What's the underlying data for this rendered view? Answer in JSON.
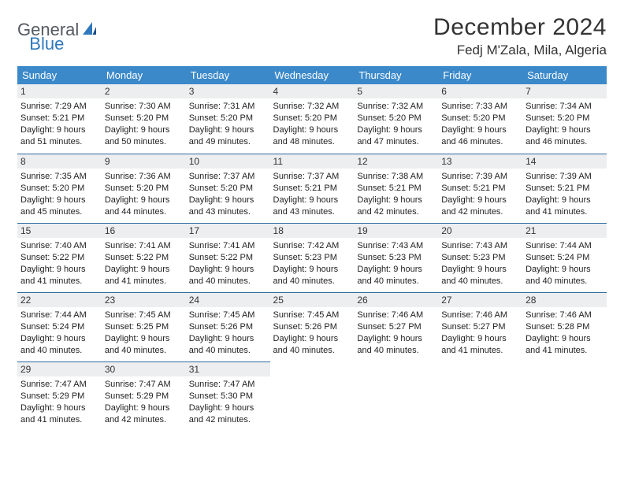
{
  "logo": {
    "part1": "General",
    "part2": "Blue"
  },
  "title": "December 2024",
  "location": "Fedj M'Zala, Mila, Algeria",
  "colors": {
    "header_bg": "#3b89c9",
    "header_text": "#ffffff",
    "daynum_bg": "#eceeef",
    "divider": "#2f6aa3",
    "logo_gray": "#555a62",
    "logo_blue": "#2f78bd"
  },
  "weekdays": [
    "Sunday",
    "Monday",
    "Tuesday",
    "Wednesday",
    "Thursday",
    "Friday",
    "Saturday"
  ],
  "weeks": [
    [
      {
        "n": "1",
        "sr": "Sunrise: 7:29 AM",
        "ss": "Sunset: 5:21 PM",
        "d1": "Daylight: 9 hours",
        "d2": "and 51 minutes."
      },
      {
        "n": "2",
        "sr": "Sunrise: 7:30 AM",
        "ss": "Sunset: 5:20 PM",
        "d1": "Daylight: 9 hours",
        "d2": "and 50 minutes."
      },
      {
        "n": "3",
        "sr": "Sunrise: 7:31 AM",
        "ss": "Sunset: 5:20 PM",
        "d1": "Daylight: 9 hours",
        "d2": "and 49 minutes."
      },
      {
        "n": "4",
        "sr": "Sunrise: 7:32 AM",
        "ss": "Sunset: 5:20 PM",
        "d1": "Daylight: 9 hours",
        "d2": "and 48 minutes."
      },
      {
        "n": "5",
        "sr": "Sunrise: 7:32 AM",
        "ss": "Sunset: 5:20 PM",
        "d1": "Daylight: 9 hours",
        "d2": "and 47 minutes."
      },
      {
        "n": "6",
        "sr": "Sunrise: 7:33 AM",
        "ss": "Sunset: 5:20 PM",
        "d1": "Daylight: 9 hours",
        "d2": "and 46 minutes."
      },
      {
        "n": "7",
        "sr": "Sunrise: 7:34 AM",
        "ss": "Sunset: 5:20 PM",
        "d1": "Daylight: 9 hours",
        "d2": "and 46 minutes."
      }
    ],
    [
      {
        "n": "8",
        "sr": "Sunrise: 7:35 AM",
        "ss": "Sunset: 5:20 PM",
        "d1": "Daylight: 9 hours",
        "d2": "and 45 minutes."
      },
      {
        "n": "9",
        "sr": "Sunrise: 7:36 AM",
        "ss": "Sunset: 5:20 PM",
        "d1": "Daylight: 9 hours",
        "d2": "and 44 minutes."
      },
      {
        "n": "10",
        "sr": "Sunrise: 7:37 AM",
        "ss": "Sunset: 5:20 PM",
        "d1": "Daylight: 9 hours",
        "d2": "and 43 minutes."
      },
      {
        "n": "11",
        "sr": "Sunrise: 7:37 AM",
        "ss": "Sunset: 5:21 PM",
        "d1": "Daylight: 9 hours",
        "d2": "and 43 minutes."
      },
      {
        "n": "12",
        "sr": "Sunrise: 7:38 AM",
        "ss": "Sunset: 5:21 PM",
        "d1": "Daylight: 9 hours",
        "d2": "and 42 minutes."
      },
      {
        "n": "13",
        "sr": "Sunrise: 7:39 AM",
        "ss": "Sunset: 5:21 PM",
        "d1": "Daylight: 9 hours",
        "d2": "and 42 minutes."
      },
      {
        "n": "14",
        "sr": "Sunrise: 7:39 AM",
        "ss": "Sunset: 5:21 PM",
        "d1": "Daylight: 9 hours",
        "d2": "and 41 minutes."
      }
    ],
    [
      {
        "n": "15",
        "sr": "Sunrise: 7:40 AM",
        "ss": "Sunset: 5:22 PM",
        "d1": "Daylight: 9 hours",
        "d2": "and 41 minutes."
      },
      {
        "n": "16",
        "sr": "Sunrise: 7:41 AM",
        "ss": "Sunset: 5:22 PM",
        "d1": "Daylight: 9 hours",
        "d2": "and 41 minutes."
      },
      {
        "n": "17",
        "sr": "Sunrise: 7:41 AM",
        "ss": "Sunset: 5:22 PM",
        "d1": "Daylight: 9 hours",
        "d2": "and 40 minutes."
      },
      {
        "n": "18",
        "sr": "Sunrise: 7:42 AM",
        "ss": "Sunset: 5:23 PM",
        "d1": "Daylight: 9 hours",
        "d2": "and 40 minutes."
      },
      {
        "n": "19",
        "sr": "Sunrise: 7:43 AM",
        "ss": "Sunset: 5:23 PM",
        "d1": "Daylight: 9 hours",
        "d2": "and 40 minutes."
      },
      {
        "n": "20",
        "sr": "Sunrise: 7:43 AM",
        "ss": "Sunset: 5:23 PM",
        "d1": "Daylight: 9 hours",
        "d2": "and 40 minutes."
      },
      {
        "n": "21",
        "sr": "Sunrise: 7:44 AM",
        "ss": "Sunset: 5:24 PM",
        "d1": "Daylight: 9 hours",
        "d2": "and 40 minutes."
      }
    ],
    [
      {
        "n": "22",
        "sr": "Sunrise: 7:44 AM",
        "ss": "Sunset: 5:24 PM",
        "d1": "Daylight: 9 hours",
        "d2": "and 40 minutes."
      },
      {
        "n": "23",
        "sr": "Sunrise: 7:45 AM",
        "ss": "Sunset: 5:25 PM",
        "d1": "Daylight: 9 hours",
        "d2": "and 40 minutes."
      },
      {
        "n": "24",
        "sr": "Sunrise: 7:45 AM",
        "ss": "Sunset: 5:26 PM",
        "d1": "Daylight: 9 hours",
        "d2": "and 40 minutes."
      },
      {
        "n": "25",
        "sr": "Sunrise: 7:45 AM",
        "ss": "Sunset: 5:26 PM",
        "d1": "Daylight: 9 hours",
        "d2": "and 40 minutes."
      },
      {
        "n": "26",
        "sr": "Sunrise: 7:46 AM",
        "ss": "Sunset: 5:27 PM",
        "d1": "Daylight: 9 hours",
        "d2": "and 40 minutes."
      },
      {
        "n": "27",
        "sr": "Sunrise: 7:46 AM",
        "ss": "Sunset: 5:27 PM",
        "d1": "Daylight: 9 hours",
        "d2": "and 41 minutes."
      },
      {
        "n": "28",
        "sr": "Sunrise: 7:46 AM",
        "ss": "Sunset: 5:28 PM",
        "d1": "Daylight: 9 hours",
        "d2": "and 41 minutes."
      }
    ],
    [
      {
        "n": "29",
        "sr": "Sunrise: 7:47 AM",
        "ss": "Sunset: 5:29 PM",
        "d1": "Daylight: 9 hours",
        "d2": "and 41 minutes."
      },
      {
        "n": "30",
        "sr": "Sunrise: 7:47 AM",
        "ss": "Sunset: 5:29 PM",
        "d1": "Daylight: 9 hours",
        "d2": "and 42 minutes."
      },
      {
        "n": "31",
        "sr": "Sunrise: 7:47 AM",
        "ss": "Sunset: 5:30 PM",
        "d1": "Daylight: 9 hours",
        "d2": "and 42 minutes."
      },
      null,
      null,
      null,
      null
    ]
  ]
}
